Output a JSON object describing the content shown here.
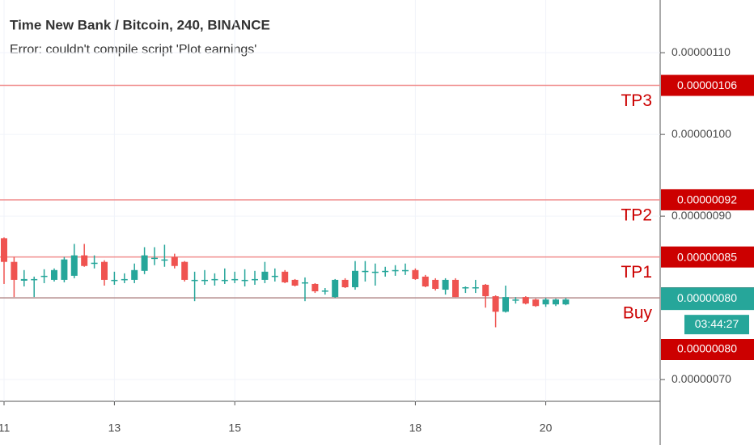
{
  "chart_data": {
    "type": "candlestick",
    "title": "Time New Bank / Bitcoin, 240, BINANCE",
    "subtitle": "Error: couldn't compile script 'Plot earnings'",
    "categories": [
      "11",
      null,
      null,
      null,
      null,
      null,
      null,
      null,
      null,
      null,
      null,
      "13",
      null,
      null,
      null,
      null,
      null,
      null,
      null,
      null,
      null,
      null,
      null,
      "15",
      null,
      null,
      null,
      null,
      null,
      null,
      null,
      null,
      null,
      null,
      null,
      null,
      null,
      null,
      null,
      null,
      null,
      "18",
      null,
      null,
      null,
      null,
      null,
      null,
      null,
      null,
      null,
      null,
      null,
      null,
      "20",
      null,
      null
    ],
    "open": [
      8.73e-07,
      8.44e-07,
      8.21e-07,
      8.22e-07,
      8.26e-07,
      8.22e-07,
      8.22e-07,
      8.27e-07,
      8.52e-07,
      8.42e-07,
      8.44e-07,
      8.21e-07,
      8.22e-07,
      8.22e-07,
      8.33e-07,
      8.48e-07,
      8.46e-07,
      8.5e-07,
      8.44e-07,
      8.21e-07,
      8.21e-07,
      8.22e-07,
      8.21e-07,
      8.22e-07,
      8.21e-07,
      8.22e-07,
      8.22e-07,
      8.26e-07,
      8.32e-07,
      8.22e-07,
      8.18e-07,
      8.17e-07,
      8.08e-07,
      8.01e-07,
      8.22e-07,
      8.13e-07,
      8.32e-07,
      8.31e-07,
      8.32e-07,
      8.33e-07,
      8.33e-07,
      8.34e-07,
      8.26e-07,
      8.22e-07,
      8.1e-07,
      8.22e-07,
      8.12e-07,
      8.12e-07,
      8.16e-07,
      8.02e-07,
      7.83e-07,
      7.98e-07,
      8.01e-07,
      7.98e-07,
      7.92e-07,
      7.92e-07,
      7.92e-07
    ],
    "high": [
      8.74e-07,
      8.5e-07,
      8.34e-07,
      8.26e-07,
      8.35e-07,
      8.36e-07,
      8.5e-07,
      8.66e-07,
      8.66e-07,
      8.52e-07,
      8.46e-07,
      8.32e-07,
      8.3e-07,
      8.42e-07,
      8.62e-07,
      8.62e-07,
      8.65e-07,
      8.54e-07,
      8.45e-07,
      8.32e-07,
      8.34e-07,
      8.3e-07,
      8.36e-07,
      8.32e-07,
      8.35e-07,
      8.33e-07,
      8.44e-07,
      8.36e-07,
      8.34e-07,
      8.23e-07,
      8.25e-07,
      8.18e-07,
      8.12e-07,
      8.23e-07,
      8.24e-07,
      8.45e-07,
      8.45e-07,
      8.42e-07,
      8.38e-07,
      8.4e-07,
      8.42e-07,
      8.36e-07,
      8.28e-07,
      8.24e-07,
      8.24e-07,
      8.24e-07,
      8.14e-07,
      8.22e-07,
      8.17e-07,
      8.03e-07,
      8.15e-07,
      8.01e-07,
      8.02e-07,
      7.99e-07,
      8e-07,
      7.99e-07,
      8e-07
    ],
    "low": [
      8.17e-07,
      8.01e-07,
      8.14e-07,
      8.01e-07,
      8.18e-07,
      8.2e-07,
      8.19e-07,
      8.24e-07,
      8.38e-07,
      8.36e-07,
      8.15e-07,
      8.16e-07,
      8.18e-07,
      8.18e-07,
      8.29e-07,
      8.4e-07,
      8.38e-07,
      8.36e-07,
      8.2e-07,
      7.96e-07,
      8.16e-07,
      8.15e-07,
      8.17e-07,
      8.18e-07,
      8.14e-07,
      8.16e-07,
      8.18e-07,
      8.2e-07,
      8.18e-07,
      8.14e-07,
      7.96e-07,
      8.06e-07,
      8.04e-07,
      8e-07,
      8.12e-07,
      8.1e-07,
      8.2e-07,
      8.15e-07,
      8.26e-07,
      8.27e-07,
      8.28e-07,
      8.22e-07,
      8.13e-07,
      8.09e-07,
      8.04e-07,
      8.01e-07,
      8.06e-07,
      8.06e-07,
      7.88e-07,
      7.64e-07,
      7.82e-07,
      7.93e-07,
      7.92e-07,
      7.89e-07,
      7.89e-07,
      7.9e-07,
      7.91e-07
    ],
    "close": [
      8.44e-07,
      8.22e-07,
      8.23e-07,
      8.23e-07,
      8.27e-07,
      8.34e-07,
      8.47e-07,
      8.52e-07,
      8.39e-07,
      8.43e-07,
      8.22e-07,
      8.22e-07,
      8.23e-07,
      8.34e-07,
      8.52e-07,
      8.49e-07,
      8.47e-07,
      8.39e-07,
      8.22e-07,
      8.22e-07,
      8.22e-07,
      8.23e-07,
      8.22e-07,
      8.23e-07,
      8.22e-07,
      8.23e-07,
      8.32e-07,
      8.27e-07,
      8.19e-07,
      8.15e-07,
      8.19e-07,
      8.08e-07,
      8.09e-07,
      8.22e-07,
      8.13e-07,
      8.33e-07,
      8.33e-07,
      8.32e-07,
      8.33e-07,
      8.34e-07,
      8.34e-07,
      8.23e-07,
      8.14e-07,
      8.11e-07,
      8.22e-07,
      8.01e-07,
      8.13e-07,
      8.13e-07,
      8.02e-07,
      7.83e-07,
      8.01e-07,
      7.98e-07,
      7.93e-07,
      7.9e-07,
      7.98e-07,
      7.98e-07,
      7.98e-07
    ],
    "up_color": "#26a69a",
    "down_color": "#ef5350",
    "ylim": [
      6.734e-07,
      1.1645e-06
    ],
    "yticks": [
      {
        "value": 1.1e-06,
        "label": "0.00000110"
      },
      {
        "value": 1e-06,
        "label": "0.00000100"
      },
      {
        "value": 9e-07,
        "label": "0.00000090"
      },
      {
        "value": 7e-07,
        "label": "0.00000070"
      }
    ],
    "grid": true,
    "price_lines": [
      {
        "name": "TP3",
        "value": 1.06e-06,
        "label": "0.00000106",
        "color": "#cc0000",
        "line_color": "#f08c8c"
      },
      {
        "name": "TP2",
        "value": 9.2e-07,
        "label": "0.00000092",
        "color": "#cc0000",
        "line_color": "#f08c8c"
      },
      {
        "name": "TP1",
        "value": 8.5e-07,
        "label": "0.00000085",
        "color": "#cc0000",
        "line_color": "#f08c8c"
      },
      {
        "name": "Buy",
        "value": 8e-07,
        "label": "0.00000080",
        "color": "#cc0000",
        "line_color": "#b38a8a"
      }
    ],
    "last_price": {
      "value": 7.98e-07,
      "label": "0.00000080",
      "color": "#26a69a",
      "countdown": "03:44:27"
    },
    "lower_tag": {
      "label": "0.00000080",
      "color": "#cc0000"
    }
  }
}
